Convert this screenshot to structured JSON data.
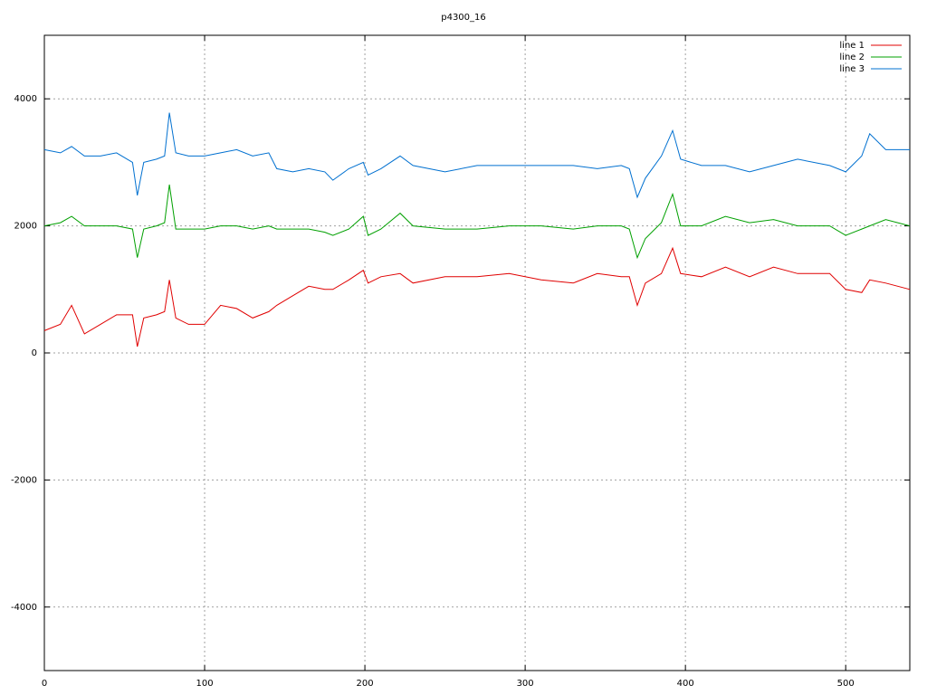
{
  "chart_data": {
    "type": "line",
    "title": "p4300_16",
    "x": [
      0,
      10,
      17,
      25,
      35,
      45,
      55,
      58,
      62,
      70,
      75,
      78,
      82,
      90,
      100,
      110,
      120,
      130,
      140,
      145,
      155,
      165,
      175,
      180,
      190,
      199,
      202,
      210,
      222,
      230,
      250,
      270,
      290,
      310,
      330,
      345,
      360,
      365,
      370,
      375,
      385,
      392,
      397,
      410,
      425,
      440,
      455,
      470,
      490,
      500,
      510,
      515,
      525,
      540
    ],
    "series": [
      {
        "name": "line 1",
        "color": "#e00000",
        "values": [
          350,
          450,
          750,
          300,
          450,
          600,
          600,
          100,
          550,
          600,
          650,
          1150,
          550,
          450,
          450,
          750,
          700,
          550,
          650,
          750,
          900,
          1050,
          1000,
          1000,
          1150,
          1300,
          1100,
          1200,
          1250,
          1100,
          1200,
          1200,
          1250,
          1150,
          1100,
          1250,
          1200,
          1200,
          750,
          1100,
          1250,
          1650,
          1250,
          1200,
          1350,
          1200,
          1350,
          1250,
          1250,
          1000,
          950,
          1150,
          1100,
          1000
        ]
      },
      {
        "name": "line 2",
        "color": "#00a000",
        "values": [
          2000,
          2050,
          2150,
          2000,
          2000,
          2000,
          1950,
          1500,
          1950,
          2000,
          2050,
          2650,
          1950,
          1950,
          1950,
          2000,
          2000,
          1950,
          2000,
          1950,
          1950,
          1950,
          1900,
          1850,
          1950,
          2150,
          1850,
          1950,
          2200,
          2000,
          1950,
          1950,
          2000,
          2000,
          1950,
          2000,
          2000,
          1950,
          1500,
          1800,
          2050,
          2500,
          2000,
          2000,
          2150,
          2050,
          2100,
          2000,
          2000,
          1850,
          1950,
          2000,
          2100,
          2000
        ]
      },
      {
        "name": "line 3",
        "color": "#0070d0",
        "values": [
          3200,
          3150,
          3250,
          3100,
          3100,
          3150,
          3000,
          2480,
          3000,
          3050,
          3100,
          3780,
          3150,
          3100,
          3100,
          3150,
          3200,
          3100,
          3150,
          2900,
          2850,
          2900,
          2850,
          2720,
          2900,
          3000,
          2800,
          2900,
          3100,
          2950,
          2850,
          2950,
          2950,
          2950,
          2950,
          2900,
          2950,
          2900,
          2450,
          2750,
          3100,
          3500,
          3050,
          2950,
          2950,
          2850,
          2950,
          3050,
          2950,
          2850,
          3100,
          3450,
          3200,
          3200
        ]
      }
    ],
    "xlim": [
      0,
      540
    ],
    "xticks": [
      0,
      100,
      200,
      300,
      400,
      500
    ],
    "ylim": [
      -5000,
      5000
    ],
    "yticks": [
      -4000,
      -2000,
      0,
      2000,
      4000
    ],
    "grid": true,
    "legend": "top-right"
  }
}
